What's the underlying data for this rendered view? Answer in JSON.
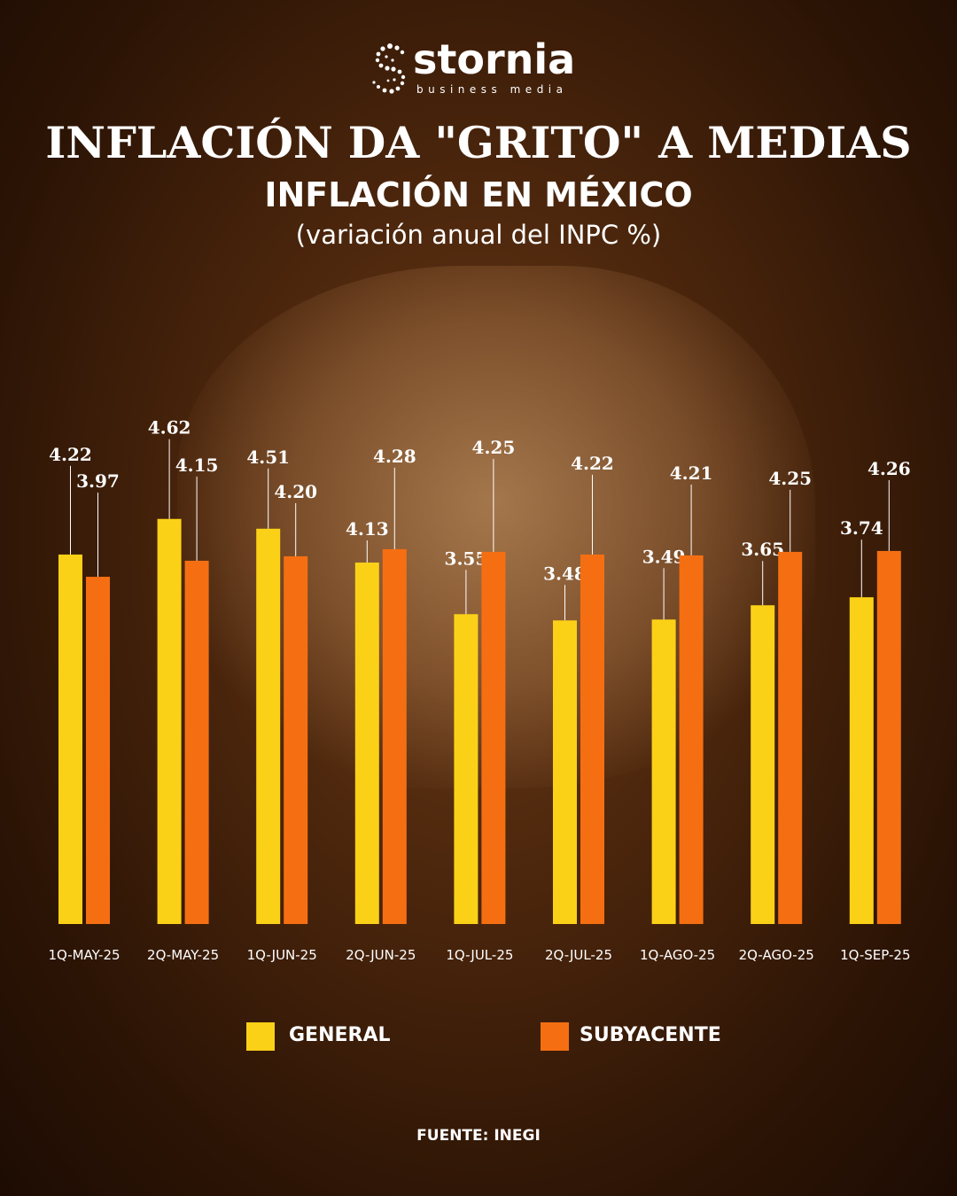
{
  "brand": {
    "name": "stornia",
    "tagline": "business media"
  },
  "header": {
    "title": "INFLACIÓN DA \"GRITO\" A MEDIAS",
    "subtitle": "INFLACIÓN EN MÉXICO",
    "subtitle2": "(variación anual del INPC %)"
  },
  "colors": {
    "general": "#fbd117",
    "subyacente": "#f56f12"
  },
  "chart_data": {
    "type": "bar",
    "title": "INFLACIÓN EN MÉXICO",
    "subtitle": "(variación anual del INPC %)",
    "categories": [
      "1Q-MAY-25",
      "2Q-MAY-25",
      "1Q-JUN-25",
      "2Q-JUN-25",
      "1Q-JUL-25",
      "2Q-JUL-25",
      "1Q-AGO-25",
      "2Q-AGO-25",
      "1Q-SEP-25"
    ],
    "series": [
      {
        "name": "GENERAL",
        "values": [
          4.22,
          4.62,
          4.51,
          4.13,
          3.55,
          3.48,
          3.49,
          3.65,
          3.74
        ]
      },
      {
        "name": "SUBYACENTE",
        "values": [
          3.97,
          4.15,
          4.2,
          4.28,
          4.25,
          4.22,
          4.21,
          4.25,
          4.26
        ]
      }
    ],
    "legend_position": "bottom",
    "grid": false,
    "xlabel": "",
    "ylabel": ""
  },
  "legend": {
    "general_label": "GENERAL",
    "subyacente_label": "SUBYACENTE"
  },
  "source": "FUENTE: INEGI"
}
